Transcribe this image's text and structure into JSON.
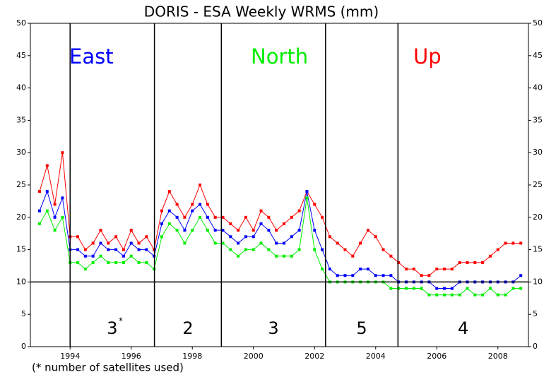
{
  "chart_data": {
    "type": "line",
    "title": "DORIS - ESA Weekly WRMS (mm)",
    "footnote": "(* number of satellites used)",
    "x": [
      1993.0,
      1993.25,
      1993.5,
      1993.75,
      1994.0,
      1994.25,
      1994.5,
      1994.75,
      1995.0,
      1995.25,
      1995.5,
      1995.75,
      1996.0,
      1996.25,
      1996.5,
      1996.75,
      1997.0,
      1997.25,
      1997.5,
      1997.75,
      1998.0,
      1998.25,
      1998.5,
      1998.75,
      1999.0,
      1999.25,
      1999.5,
      1999.75,
      2000.0,
      2000.25,
      2000.5,
      2000.75,
      2001.0,
      2001.25,
      2001.5,
      2001.75,
      2002.0,
      2002.25,
      2002.5,
      2002.75,
      2003.0,
      2003.25,
      2003.5,
      2003.75,
      2004.0,
      2004.25,
      2004.5,
      2004.75,
      2005.0,
      2005.25,
      2005.5,
      2005.75,
      2006.0,
      2006.25,
      2006.5,
      2006.75,
      2007.0,
      2007.25,
      2007.5,
      2007.75,
      2008.0,
      2008.25,
      2008.5,
      2008.75
    ],
    "series": [
      {
        "name": "Up",
        "color": "#ff0000",
        "values": [
          24,
          28,
          22,
          30,
          17,
          17,
          15,
          16,
          18,
          16,
          17,
          15,
          18,
          16,
          17,
          15,
          21,
          24,
          22,
          20,
          22,
          25,
          22,
          20,
          20,
          19,
          18,
          20,
          18,
          21,
          20,
          18,
          19,
          20,
          21,
          24,
          22,
          20,
          17,
          16,
          15,
          14,
          16,
          18,
          17,
          15,
          14,
          13,
          12,
          12,
          11,
          11,
          12,
          12,
          12,
          13,
          13,
          13,
          13,
          14,
          15,
          16,
          16,
          16
        ]
      },
      {
        "name": "East",
        "color": "#0000ff",
        "values": [
          21,
          24,
          20,
          23,
          15,
          15,
          14,
          14,
          16,
          15,
          15,
          14,
          16,
          15,
          15,
          14,
          19,
          21,
          20,
          18,
          21,
          22,
          20,
          18,
          18,
          17,
          16,
          17,
          17,
          19,
          18,
          16,
          16,
          17,
          18,
          24,
          18,
          15,
          12,
          11,
          11,
          11,
          12,
          12,
          11,
          11,
          11,
          10,
          10,
          10,
          10,
          10,
          9,
          9,
          9,
          10,
          10,
          10,
          10,
          10,
          10,
          10,
          10,
          11
        ]
      },
      {
        "name": "North",
        "color": "#00ee00",
        "values": [
          19,
          21,
          18,
          20,
          13,
          13,
          12,
          13,
          14,
          13,
          13,
          13,
          14,
          13,
          13,
          12,
          17,
          19,
          18,
          16,
          18,
          20,
          18,
          16,
          16,
          15,
          14,
          15,
          15,
          16,
          15,
          14,
          14,
          14,
          15,
          23,
          15,
          12,
          10,
          10,
          10,
          10,
          10,
          10,
          10,
          10,
          9,
          9,
          9,
          9,
          9,
          8,
          8,
          8,
          8,
          8,
          9,
          8,
          8,
          9,
          8,
          8,
          9,
          9
        ]
      }
    ],
    "xlim": [
      1992.7,
      2009.0
    ],
    "xticks": [
      1994,
      1996,
      1998,
      2000,
      2002,
      2004,
      2006,
      2008
    ],
    "ylim": [
      0,
      50
    ],
    "yticks": [
      0,
      5,
      10,
      15,
      20,
      25,
      30,
      35,
      40,
      45,
      50
    ],
    "y2lim": [
      0,
      50
    ],
    "y2ticks": [
      0,
      5,
      10,
      15,
      20,
      25,
      30,
      35,
      40,
      45,
      50
    ],
    "reference_line": 10,
    "periods": [
      {
        "start": 1994,
        "label": "3",
        "note": "*"
      },
      {
        "start": 1996.76,
        "label": "2"
      },
      {
        "start": 1998.95,
        "label": "3"
      },
      {
        "start": 2002.36,
        "label": "5"
      },
      {
        "start": 2004.73,
        "label": "4"
      }
    ]
  }
}
